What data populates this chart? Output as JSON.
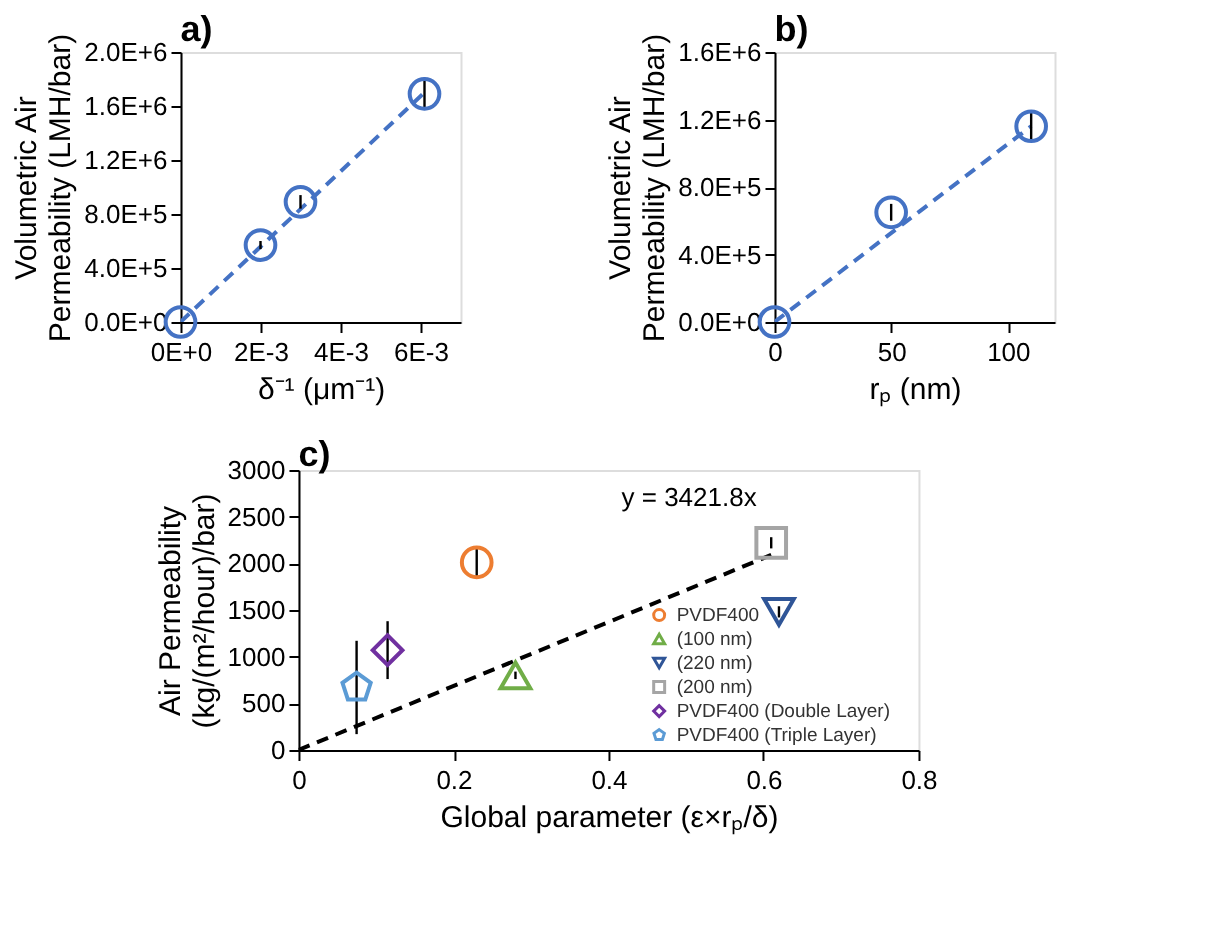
{
  "chart_data": [
    {
      "type": "scatter",
      "title": "a)",
      "xlabel": "δ⁻¹ (μm⁻¹)",
      "ylabel": "Volumetric Air Permeability (LMH/bar)",
      "xlim": [
        0,
        0.007
      ],
      "ylim": [
        0,
        2000000
      ],
      "xticks": [
        {
          "value": 0,
          "label": "0E+0"
        },
        {
          "value": 0.002,
          "label": "2E-3"
        },
        {
          "value": 0.004,
          "label": "4E-3"
        },
        {
          "value": 0.006,
          "label": "6E-3"
        }
      ],
      "yticks": [
        {
          "value": 0,
          "label": "0.0E+0"
        },
        {
          "value": 400000,
          "label": "4.0E+5"
        },
        {
          "value": 800000,
          "label": "8.0E+5"
        },
        {
          "value": 1200000,
          "label": "1.2E+6"
        },
        {
          "value": 1600000,
          "label": "1.6E+6"
        },
        {
          "value": 2000000,
          "label": "2.0E+6"
        }
      ],
      "grid": false,
      "legend": false,
      "series": [
        {
          "type": "line",
          "color": "#4472c4",
          "line_style": "dashed",
          "x": [
            0,
            0.0061
          ],
          "values": [
            0,
            1700000
          ]
        },
        {
          "type": "scatter",
          "color": "#4472c4",
          "marker": "circle",
          "x": [
            0,
            0.002,
            0.003,
            0.0061
          ],
          "values": [
            0,
            570000,
            890000,
            1690000
          ],
          "errors": [
            null,
            30000,
            50000,
            120000
          ]
        }
      ]
    },
    {
      "type": "scatter",
      "title": "b)",
      "xlabel": "rₚ (nm)",
      "ylabel": "Volumetric Air Permeability (LMH/bar)",
      "xlim": [
        0,
        120
      ],
      "ylim": [
        0,
        1600000
      ],
      "xticks": [
        0,
        50,
        100
      ],
      "yticks": [
        {
          "value": 0,
          "label": "0.0E+0"
        },
        {
          "value": 400000,
          "label": "4.0E+5"
        },
        {
          "value": 800000,
          "label": "8.0E+5"
        },
        {
          "value": 1200000,
          "label": "1.2E+6"
        },
        {
          "value": 1600000,
          "label": "1.6E+6"
        }
      ],
      "grid": false,
      "legend": false,
      "series": [
        {
          "type": "line",
          "color": "#4472c4",
          "line_style": "dashed",
          "x": [
            0,
            110
          ],
          "values": [
            0,
            1160000
          ]
        },
        {
          "type": "scatter",
          "color": "#4472c4",
          "marker": "circle",
          "x": [
            0,
            50,
            110
          ],
          "values": [
            0,
            650000,
            1160000
          ],
          "errors": [
            null,
            50000,
            90000
          ]
        }
      ]
    },
    {
      "type": "scatter",
      "title": "c)",
      "xlabel": "Global parameter (ε×rₚ/δ)",
      "ylabel": "Air Permeability (kg/(m²/hour)/bar)",
      "xlim": [
        0,
        0.8
      ],
      "ylim": [
        0,
        3000
      ],
      "xticks": [
        0,
        0.2,
        0.4,
        0.6,
        0.8
      ],
      "yticks": [
        0,
        500,
        1000,
        1500,
        2000,
        2500,
        3000
      ],
      "grid": false,
      "legend": "bottom right",
      "annotations": [
        "y = 3421.8x"
      ],
      "series": [
        {
          "type": "line",
          "color": "#000000",
          "line_style": "dashed",
          "x": [
            0,
            0.61
          ],
          "values": [
            0,
            2090
          ]
        },
        {
          "type": "scatter",
          "name": "PVDF400",
          "color": "#ed7d31",
          "marker": "circle",
          "x": [
            0.23
          ],
          "values": [
            2010
          ],
          "errors": [
            160
          ]
        },
        {
          "type": "scatter",
          "name": "(100 nm)",
          "color": "#70ad47",
          "marker": "triangle",
          "x": [
            0.28
          ],
          "values": [
            800
          ],
          "errors": [
            40
          ]
        },
        {
          "type": "scatter",
          "name": "(220 nm)",
          "color": "#2f5597",
          "marker": "triangle-down",
          "x": [
            0.62
          ],
          "values": [
            1480
          ],
          "errors": [
            60
          ]
        },
        {
          "type": "scatter",
          "name": "(200 nm)",
          "color": "#a5a5a5",
          "marker": "square",
          "x": [
            0.61
          ],
          "values": [
            2220
          ],
          "errors": [
            60
          ]
        },
        {
          "type": "scatter",
          "name": "PVDF400 (Double Layer)",
          "color": "#7030a0",
          "marker": "diamond",
          "x": [
            0.115
          ],
          "values": [
            1070
          ],
          "errors": [
            310
          ]
        },
        {
          "type": "scatter",
          "name": "PVDF400 (Triple Layer)",
          "color": "#5b9bd5",
          "x": [
            0.075
          ],
          "values": [
            670
          ],
          "errors": [
            500
          ]
        }
      ]
    }
  ]
}
